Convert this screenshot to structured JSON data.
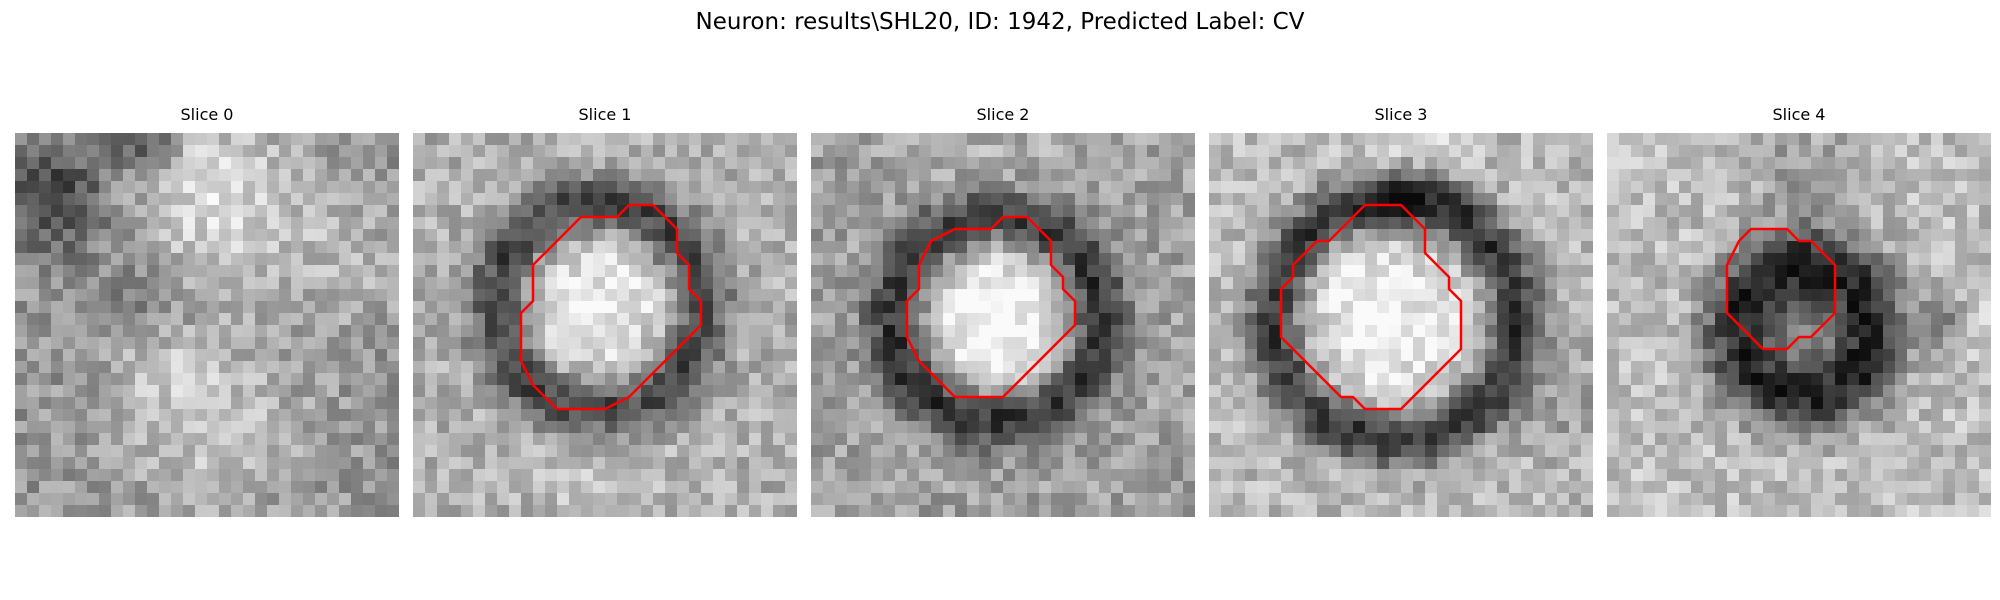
{
  "figure": {
    "title": "Neuron: results\\SHL20, ID: 1942, Predicted Label: CV",
    "outline_color": "#ff0000"
  },
  "panels": [
    {
      "title": "Slice 0",
      "has_outline": false
    },
    {
      "title": "Slice 1",
      "has_outline": true
    },
    {
      "title": "Slice 2",
      "has_outline": true
    },
    {
      "title": "Slice 3",
      "has_outline": true
    },
    {
      "title": "Slice 4",
      "has_outline": true
    }
  ]
}
